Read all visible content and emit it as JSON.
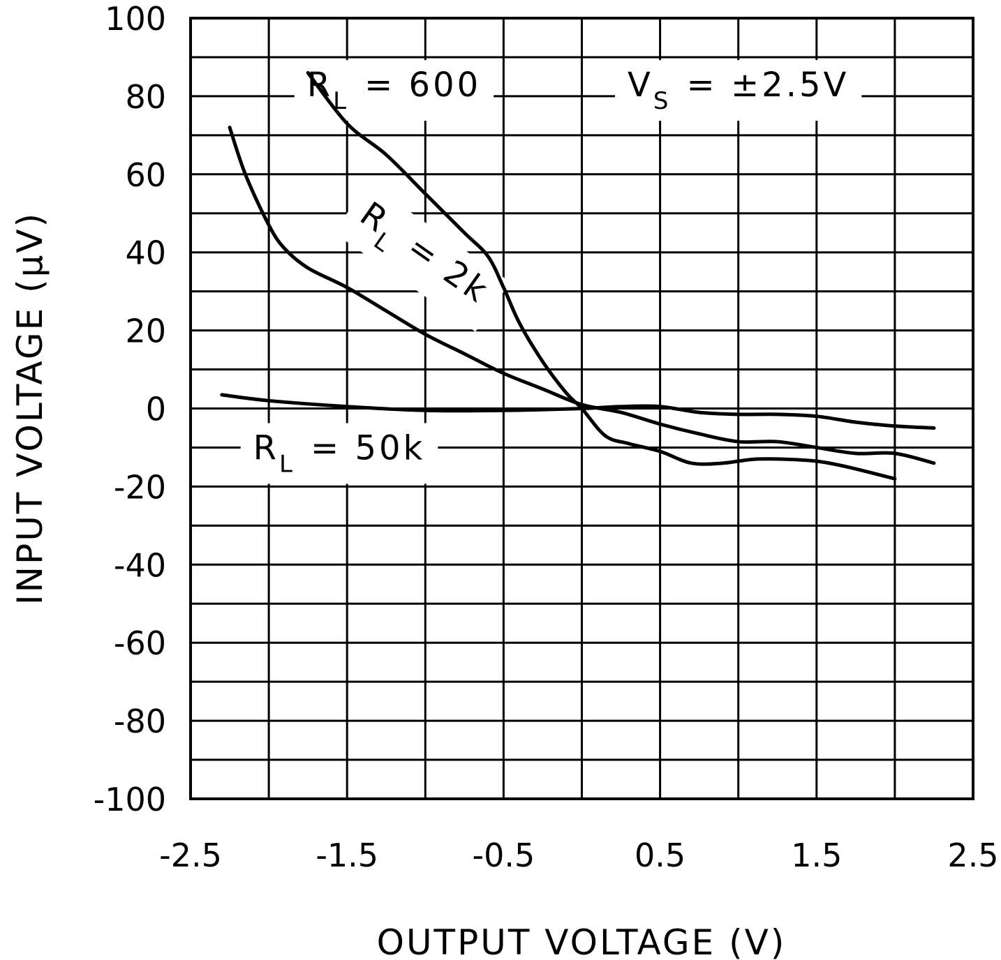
{
  "chart_data": {
    "type": "line",
    "xlabel": "OUTPUT VOLTAGE (V)",
    "ylabel": "INPUT VOLTAGE (µV)",
    "xlim": [
      -2.5,
      2.5
    ],
    "ylim": [
      -100,
      100
    ],
    "xticks": [
      -2.5,
      -1.5,
      -0.5,
      0.5,
      1.5,
      2.5
    ],
    "xtick_labels": [
      "-2.5",
      "-1.5",
      "-0.5",
      "0.5",
      "1.5",
      "2.5"
    ],
    "yticks": [
      100,
      80,
      60,
      40,
      20,
      0,
      -20,
      -40,
      -60,
      -80,
      -100
    ],
    "ytick_labels": [
      "100",
      "80",
      "60",
      "40",
      "20",
      "0",
      "-20",
      "-40",
      "-60",
      "-80",
      "-100"
    ],
    "x_minor_step": 0.5,
    "y_minor_step": 10,
    "grid": true,
    "series": [
      {
        "name": "RL = 600",
        "x": [
          -1.75,
          -1.5,
          -1.25,
          -1.0,
          -0.75,
          -0.6,
          -0.5,
          -0.4,
          -0.25,
          -0.1,
          0.0,
          0.15,
          0.3,
          0.5,
          0.7,
          0.9,
          1.1,
          1.3,
          1.5,
          1.7,
          2.0
        ],
        "y": [
          86,
          73,
          65,
          55,
          45,
          39,
          31,
          22,
          12,
          4,
          0,
          -7,
          -9,
          -11,
          -14,
          -14,
          -13,
          -13,
          -13.5,
          -15,
          -18
        ]
      },
      {
        "name": "RL = 2k",
        "x": [
          -2.25,
          -2.15,
          -2.0,
          -1.9,
          -1.75,
          -1.5,
          -1.25,
          -1.0,
          -0.75,
          -0.5,
          -0.25,
          0.0,
          0.25,
          0.5,
          0.75,
          1.0,
          1.25,
          1.5,
          1.75,
          2.0,
          2.25
        ],
        "y": [
          72,
          60,
          47,
          41,
          36,
          31,
          25,
          19,
          14,
          9,
          5,
          1,
          -1,
          -4,
          -6.5,
          -8.5,
          -8.5,
          -10,
          -11.5,
          -11.5,
          -14
        ]
      },
      {
        "name": "RL = 50k",
        "x": [
          -2.3,
          -2.0,
          -1.5,
          -1.0,
          -0.5,
          0.0,
          0.25,
          0.5,
          0.75,
          1.0,
          1.25,
          1.5,
          1.75,
          2.0,
          2.25
        ],
        "y": [
          3.5,
          2,
          0.5,
          -0.5,
          -0.5,
          0,
          0.5,
          0.5,
          -1,
          -1.5,
          -1.5,
          -2,
          -3.5,
          -4.5,
          -5
        ]
      }
    ],
    "annotations": [
      {
        "text": "R",
        "sub": "L",
        "rest": "= 600",
        "x": -1.2,
        "y": 83
      },
      {
        "text": "V",
        "sub": "S",
        "rest": "= ±2.5V",
        "x": 1.0,
        "y": 83
      },
      {
        "text": "R",
        "sub": "L",
        "rest": "= 2k",
        "x": -1.0,
        "y": 40,
        "rotate": 35
      },
      {
        "text": "R",
        "sub": "L",
        "rest": "= 50k",
        "x": -1.55,
        "y": -10
      }
    ]
  }
}
